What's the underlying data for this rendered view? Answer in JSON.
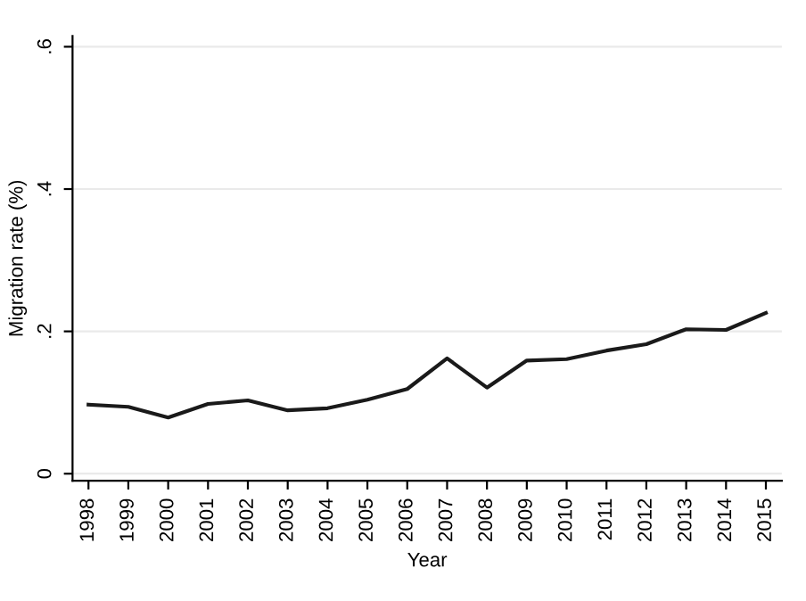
{
  "chart_data": {
    "type": "line",
    "xlabel": "Year",
    "ylabel": "Migration rate (%)",
    "x": [
      1998,
      1999,
      2000,
      2001,
      2002,
      2003,
      2004,
      2005,
      2006,
      2007,
      2008,
      2009,
      2010,
      2011,
      2012,
      2013,
      2014,
      2015
    ],
    "series": [
      {
        "color": "#1a1a1a",
        "values": [
          0.097,
          0.094,
          0.079,
          0.098,
          0.103,
          0.089,
          0.092,
          0.104,
          0.119,
          0.162,
          0.121,
          0.159,
          0.161,
          0.173,
          0.182,
          0.203,
          0.202,
          0.226
        ]
      }
    ],
    "xlim": [
      1997.6,
      2015.4
    ],
    "xticks": [
      1998,
      1999,
      2000,
      2001,
      2002,
      2003,
      2004,
      2005,
      2006,
      2007,
      2008,
      2009,
      2010,
      2011,
      2012,
      2013,
      2014,
      2015
    ],
    "ylim": [
      -0.01,
      0.615
    ],
    "yticks": [
      {
        "value": 0,
        "label": "0"
      },
      {
        "value": 0.2,
        "label": ".2"
      },
      {
        "value": 0.4,
        "label": ".4"
      },
      {
        "value": 0.6,
        "label": ".6"
      }
    ],
    "grid": "y",
    "marker": "none",
    "line_style": "solid",
    "legend": false
  }
}
